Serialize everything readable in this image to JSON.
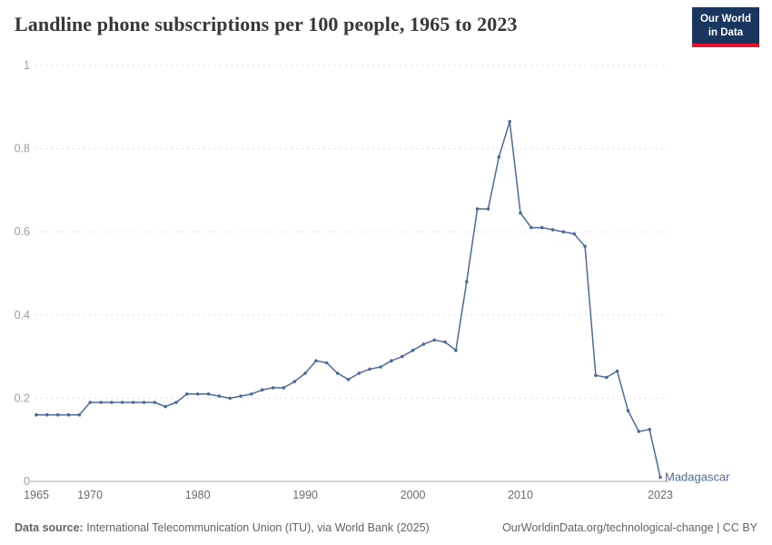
{
  "header": {
    "title": "Landline phone subscriptions per 100 people, 1965 to 2023",
    "logo": {
      "line1": "Our World",
      "line2": "in Data",
      "bg_color": "#183660",
      "accent_color": "#e8112d"
    }
  },
  "chart_data": {
    "type": "line",
    "title": "Landline phone subscriptions per 100 people, 1965 to 2023",
    "series_label": "Madagascar",
    "line_color": "#4c6a9c",
    "grid": true,
    "legend_position": "end-of-line-label",
    "xlabel": "",
    "ylabel": "",
    "xlim": [
      1965,
      2023
    ],
    "ylim": [
      0,
      1
    ],
    "x_ticks": [
      1965,
      1970,
      1980,
      1990,
      2000,
      2010,
      2023
    ],
    "y_ticks": [
      0,
      0.2,
      0.4,
      0.6,
      0.8,
      1
    ],
    "x": [
      1965,
      1966,
      1967,
      1968,
      1969,
      1970,
      1971,
      1972,
      1973,
      1974,
      1975,
      1976,
      1977,
      1978,
      1979,
      1980,
      1981,
      1982,
      1983,
      1984,
      1985,
      1986,
      1987,
      1988,
      1989,
      1990,
      1991,
      1992,
      1993,
      1994,
      1995,
      1996,
      1997,
      1998,
      1999,
      2000,
      2001,
      2002,
      2003,
      2004,
      2005,
      2006,
      2007,
      2008,
      2009,
      2010,
      2011,
      2012,
      2013,
      2014,
      2015,
      2016,
      2017,
      2018,
      2019,
      2020,
      2021,
      2022,
      2023
    ],
    "values": [
      0.16,
      0.16,
      0.16,
      0.16,
      0.16,
      0.19,
      0.19,
      0.19,
      0.19,
      0.19,
      0.19,
      0.19,
      0.18,
      0.19,
      0.21,
      0.21,
      0.21,
      0.205,
      0.2,
      0.205,
      0.21,
      0.22,
      0.225,
      0.225,
      0.24,
      0.26,
      0.29,
      0.285,
      0.26,
      0.245,
      0.26,
      0.27,
      0.275,
      0.29,
      0.3,
      0.315,
      0.33,
      0.34,
      0.335,
      0.315,
      0.48,
      0.655,
      0.655,
      0.78,
      0.865,
      0.645,
      0.61,
      0.61,
      0.605,
      0.6,
      0.595,
      0.565,
      0.255,
      0.25,
      0.265,
      0.17,
      0.12,
      0.125,
      0.01
    ]
  },
  "footer": {
    "source_label": "Data source:",
    "source_text": " International Telecommunication Union (ITU), via World Bank (2025)",
    "right_text": "OurWorldinData.org/technological-change | CC BY"
  }
}
